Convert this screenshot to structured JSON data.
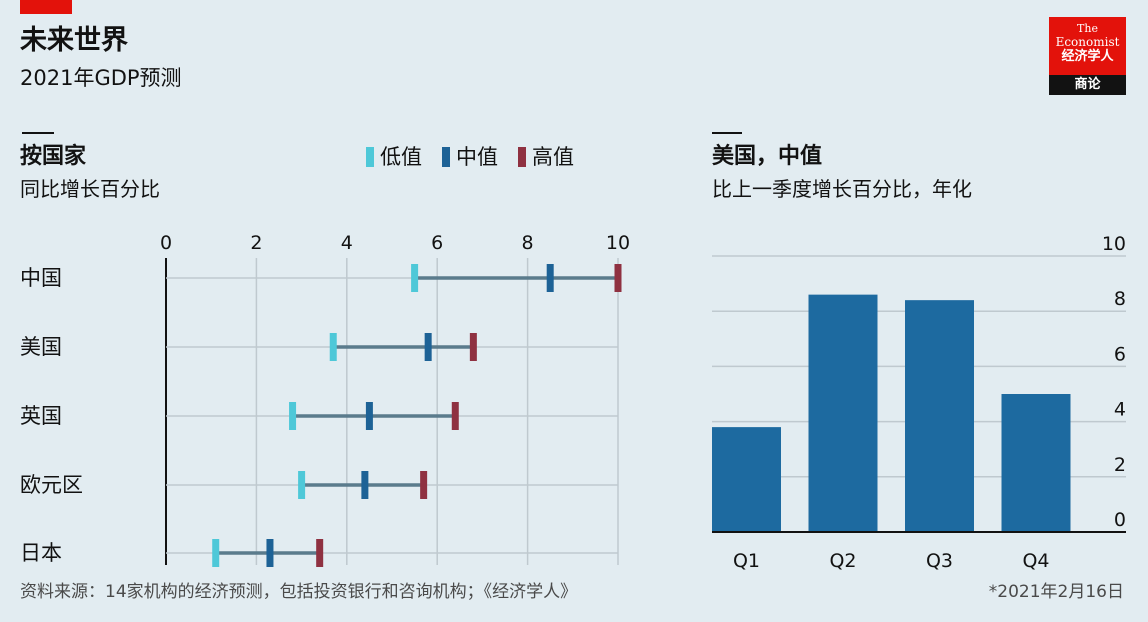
{
  "header": {
    "title": "未来世界",
    "subtitle": "2021年GDP预测"
  },
  "logo": {
    "line1": "The",
    "line2": "Economist",
    "line3": "经济学人",
    "line4": "商论",
    "brand_color": "#e3120b"
  },
  "left_panel": {
    "title": "按国家",
    "subtitle": "同比增长百分比"
  },
  "right_panel": {
    "title": "美国，中值",
    "subtitle": "比上一季度增长百分比，年化"
  },
  "legend": {
    "low": "低值",
    "mid": "中值",
    "high": "高值"
  },
  "colors": {
    "low": "#4ec8d8",
    "mid": "#1d6296",
    "high": "#8f3141",
    "range_line": "#5a7b8c",
    "bar": "#1d6aa0",
    "grid": "#bfc9cf",
    "background": "#e2ecf1"
  },
  "chart_data": [
    {
      "type": "range-dot",
      "categories": [
        "中国",
        "美国",
        "英国",
        "欧元区",
        "日本"
      ],
      "series": [
        {
          "name": "低值",
          "values": [
            5.5,
            3.7,
            2.8,
            3.0,
            1.1
          ]
        },
        {
          "name": "中值",
          "values": [
            8.5,
            5.8,
            4.5,
            4.4,
            2.3
          ]
        },
        {
          "name": "高值",
          "values": [
            10.0,
            6.8,
            6.4,
            5.7,
            3.4
          ]
        }
      ],
      "xticks": [
        0,
        2,
        4,
        6,
        8,
        10
      ],
      "xlim": [
        0,
        10
      ],
      "grid": true,
      "axis_position": "top"
    },
    {
      "type": "bar",
      "categories": [
        "Q1",
        "Q2",
        "Q3",
        "Q4"
      ],
      "values": [
        3.8,
        8.6,
        8.4,
        5.0
      ],
      "yticks": [
        0,
        2,
        4,
        6,
        8,
        10
      ],
      "ylim": [
        0,
        10
      ],
      "grid": true,
      "axis_position": "right"
    }
  ],
  "footer": {
    "source": "资料来源：14家机构的经济预测，包括投资银行和咨询机构；《经济学人》",
    "note": "*2021年2月16日"
  }
}
